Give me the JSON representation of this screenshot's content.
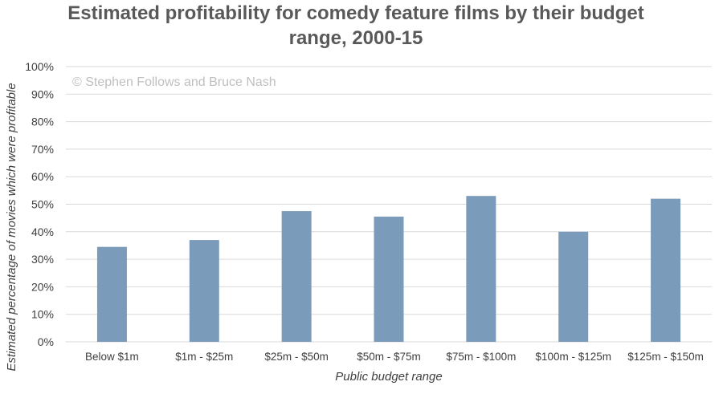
{
  "chart_data": {
    "type": "bar",
    "title_lines": [
      "Estimated profitability for comedy feature films by their budget",
      "range, 2000-15"
    ],
    "watermark": "© Stephen Follows and Bruce Nash",
    "xlabel": "Public budget range",
    "ylabel": "Estimated percentage of movies which were profitable",
    "categories": [
      "Below $1m",
      "$1m - $25m",
      "$25m - $50m",
      "$50m - $75m",
      "$75m - $100m",
      "$100m - $125m",
      "$125m - $150m"
    ],
    "values": [
      34.5,
      37,
      47.5,
      45.5,
      53,
      40,
      52
    ],
    "ylim": [
      0,
      100
    ],
    "yticks": [
      0,
      10,
      20,
      30,
      40,
      50,
      60,
      70,
      80,
      90,
      100
    ],
    "ytick_labels": [
      "0%",
      "10%",
      "20%",
      "30%",
      "40%",
      "50%",
      "60%",
      "70%",
      "80%",
      "90%",
      "100%"
    ],
    "grid": true,
    "bar_color": "#7a9cba"
  }
}
